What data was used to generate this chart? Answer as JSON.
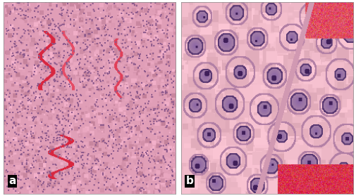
{
  "figure_width": 5.06,
  "figure_height": 2.79,
  "dpi": 100,
  "outer_bg": "#ffffff",
  "panel_a_label": "a",
  "panel_b_label": "b",
  "label_color": "#ffffff",
  "label_fontsize": 11
}
